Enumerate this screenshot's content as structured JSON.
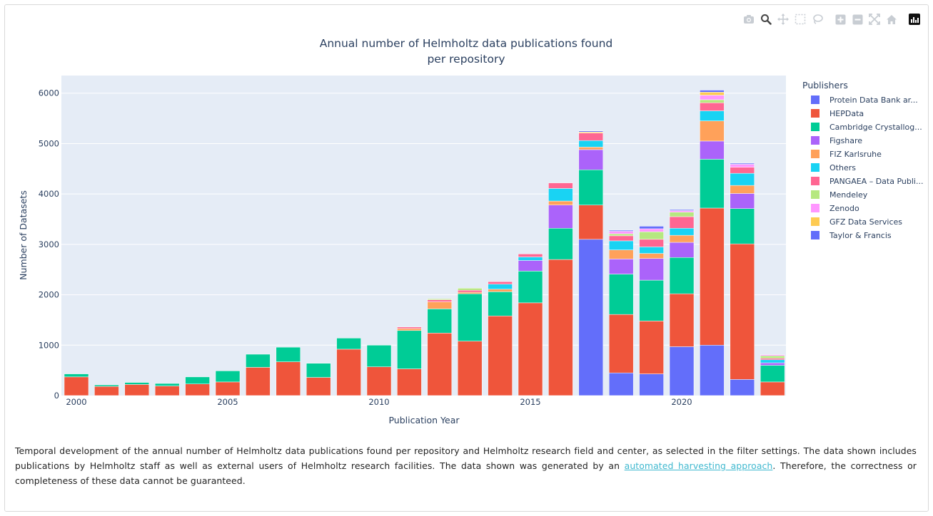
{
  "modebar": {
    "icons": [
      "camera-icon",
      "zoom-icon",
      "pan-icon",
      "box-select-icon",
      "lasso-icon",
      "zoom-in-icon",
      "zoom-out-icon",
      "autoscale-icon",
      "home-icon",
      "plotly-logo-icon"
    ]
  },
  "chart_data": {
    "type": "bar",
    "barmode": "stack",
    "title_line1": "Annual number of Helmholtz data publications found",
    "title_line2": "per repository",
    "xlabel": "Publication Year",
    "ylabel": "Number of Datasets",
    "xticks": [
      "2000",
      "2005",
      "2010",
      "2015",
      "2020"
    ],
    "yticks": [
      "0",
      "1000",
      "2000",
      "3000",
      "4000",
      "5000",
      "6000"
    ],
    "ylim": [
      0,
      6350
    ],
    "legend_title": "Publishers",
    "legend_position": "right",
    "categories": [
      2000,
      2001,
      2002,
      2003,
      2004,
      2005,
      2006,
      2007,
      2008,
      2009,
      2010,
      2011,
      2012,
      2013,
      2014,
      2015,
      2016,
      2017,
      2018,
      2019,
      2020,
      2021,
      2022,
      2023
    ],
    "series": [
      {
        "name": "Protein Data Bank ar...",
        "color": "#636efa",
        "values": [
          0,
          0,
          0,
          0,
          0,
          0,
          0,
          0,
          0,
          0,
          0,
          0,
          0,
          0,
          0,
          0,
          0,
          3100,
          450,
          430,
          970,
          1000,
          320,
          0
        ]
      },
      {
        "name": "HEPData",
        "color": "#ef553b",
        "values": [
          370,
          180,
          220,
          190,
          230,
          270,
          560,
          670,
          360,
          920,
          570,
          530,
          1240,
          1080,
          1580,
          1840,
          2700,
          680,
          1160,
          1050,
          1050,
          2720,
          2690,
          270
        ]
      },
      {
        "name": "Cambridge Crystallog...",
        "color": "#00cc96",
        "values": [
          60,
          30,
          40,
          50,
          140,
          220,
          260,
          290,
          280,
          220,
          430,
          760,
          480,
          940,
          480,
          630,
          620,
          700,
          800,
          810,
          720,
          970,
          700,
          330
        ]
      },
      {
        "name": "Figshare",
        "color": "#ab63fa",
        "values": [
          0,
          0,
          0,
          0,
          0,
          0,
          0,
          0,
          0,
          0,
          0,
          0,
          0,
          0,
          0,
          210,
          460,
          400,
          300,
          430,
          300,
          360,
          300,
          50
        ]
      },
      {
        "name": "FIZ Karlsruhe",
        "color": "#ffa15a",
        "values": [
          0,
          0,
          0,
          0,
          0,
          0,
          0,
          0,
          0,
          0,
          0,
          40,
          140,
          30,
          50,
          0,
          80,
          50,
          180,
          100,
          140,
          400,
          160,
          0
        ]
      },
      {
        "name": "Others",
        "color": "#19d3f3",
        "values": [
          0,
          0,
          0,
          0,
          0,
          0,
          0,
          0,
          0,
          0,
          0,
          0,
          0,
          0,
          100,
          70,
          250,
          130,
          180,
          130,
          140,
          200,
          240,
          60
        ]
      },
      {
        "name": "PANGAEA – Data Publi...",
        "color": "#ff6692",
        "values": [
          0,
          0,
          0,
          0,
          0,
          0,
          0,
          0,
          0,
          0,
          0,
          30,
          40,
          40,
          50,
          60,
          110,
          150,
          100,
          150,
          230,
          160,
          120,
          30
        ]
      },
      {
        "name": "Mendeley",
        "color": "#b6e880",
        "values": [
          0,
          0,
          0,
          0,
          0,
          0,
          0,
          0,
          0,
          0,
          0,
          0,
          20,
          40,
          0,
          0,
          0,
          0,
          40,
          150,
          90,
          60,
          0,
          50
        ]
      },
      {
        "name": "Zenodo",
        "color": "#ff97ff",
        "values": [
          0,
          0,
          0,
          0,
          0,
          0,
          0,
          0,
          0,
          0,
          0,
          0,
          0,
          0,
          0,
          0,
          0,
          0,
          50,
          60,
          30,
          90,
          60,
          20
        ]
      },
      {
        "name": "GFZ Data Services",
        "color": "#fecb52",
        "values": [
          0,
          0,
          0,
          0,
          0,
          0,
          0,
          0,
          0,
          0,
          0,
          0,
          0,
          0,
          0,
          0,
          0,
          20,
          0,
          0,
          0,
          60,
          0,
          0
        ]
      },
      {
        "name": "Taylor & Francis",
        "color": "#636efa",
        "values": [
          0,
          0,
          0,
          0,
          0,
          0,
          0,
          0,
          0,
          0,
          0,
          0,
          0,
          0,
          0,
          0,
          0,
          20,
          20,
          50,
          20,
          40,
          20,
          0
        ]
      }
    ]
  },
  "caption": {
    "text_before": "Temporal development of the annual number of Helmholtz data publications found per repository and Helmholtz research field and center, as selected in the filter settings. The data shown includes publications by Helmholtz staff as well as external users of Helmholtz research facilities. The data shown was generated by an ",
    "link_text": "automated harvesting approach",
    "text_after": ". Therefore, the correctness or completeness of these data cannot be guaranteed."
  }
}
